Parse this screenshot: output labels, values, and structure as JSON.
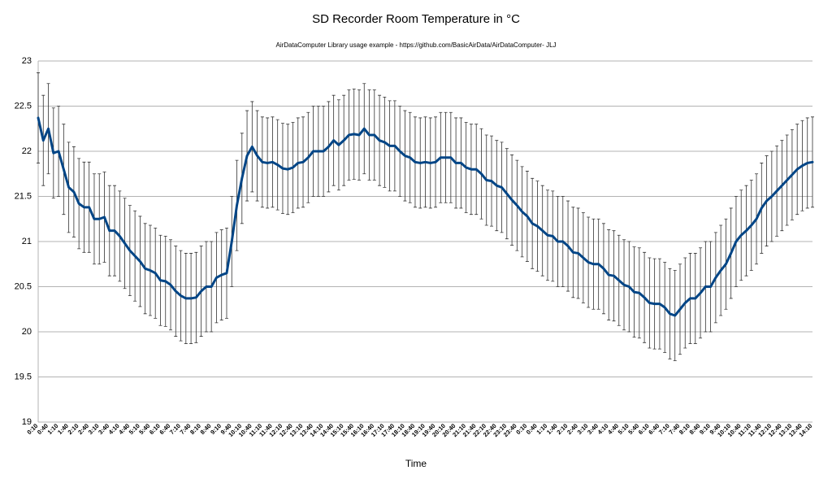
{
  "chart_data": {
    "type": "line",
    "title": "SD Recorder Room Temperature in °C",
    "subtitle": "AirDataComputer Library usage example - https://github.com/BasicAirData/AirDataComputer-  JLJ",
    "x_label": "Time",
    "categories": [
      "0:10",
      null,
      "0:40",
      null,
      "1:10",
      null,
      "1:40",
      null,
      "2:10",
      null,
      "2:40",
      null,
      "3:10",
      null,
      "3:40",
      null,
      "4:10",
      null,
      "4:40",
      null,
      "5:10",
      null,
      "5:40",
      null,
      "6:10",
      null,
      "6:40",
      null,
      "7:10",
      null,
      "7:40",
      null,
      "8:10",
      null,
      "8:40",
      null,
      "9:10",
      null,
      "9:40",
      null,
      "10:10",
      null,
      "10:40",
      null,
      "11:10",
      null,
      "11:40",
      null,
      "12:10",
      null,
      "12:40",
      null,
      "13:10",
      null,
      "13:40",
      null,
      "14:10",
      null,
      "14:40",
      null,
      "15:10",
      null,
      "15:40",
      null,
      "16:10",
      null,
      "16:40",
      null,
      "17:10",
      null,
      "17:40",
      null,
      "18:10",
      null,
      "18:40",
      null,
      "19:10",
      null,
      "19:40",
      null,
      "20:10",
      null,
      "20:40",
      null,
      "21:10",
      null,
      "21:40",
      null,
      "22:10",
      null,
      "22:40",
      null,
      "23:10",
      null,
      "23:40",
      null,
      "0:10",
      null,
      "0:40",
      null,
      "1:10",
      null,
      "1:40",
      null,
      "2:10",
      null,
      "2:40",
      null,
      "3:10",
      null,
      "3:40",
      null,
      "4:10",
      null,
      "4:40",
      null,
      "5:10",
      null,
      "5:40",
      null,
      "6:10",
      null,
      "6:40",
      null,
      "7:10",
      null,
      "7:40",
      null,
      "8:10",
      null,
      "8:40",
      null,
      "9:10",
      null,
      "9:40",
      null,
      "10:10",
      null,
      "10:40",
      null,
      "11:10",
      null,
      "11:40",
      null,
      "12:10",
      null,
      "12:40",
      null,
      "13:10",
      null,
      "13:40",
      null,
      "14:10"
    ],
    "series": [
      {
        "color": "#004586",
        "error": 0.5,
        "error_color": "#333333",
        "values": [
          22.37,
          22.12,
          22.25,
          21.98,
          22.0,
          21.8,
          21.6,
          21.55,
          21.42,
          21.38,
          21.38,
          21.25,
          21.25,
          21.27,
          21.12,
          21.12,
          21.06,
          20.98,
          20.9,
          20.84,
          20.78,
          20.7,
          20.68,
          20.65,
          20.57,
          20.56,
          20.52,
          20.45,
          20.4,
          20.37,
          20.37,
          20.38,
          20.45,
          20.5,
          20.5,
          20.6,
          20.63,
          20.65,
          21.0,
          21.4,
          21.7,
          21.95,
          22.05,
          21.95,
          21.88,
          21.87,
          21.88,
          21.85,
          21.81,
          21.8,
          21.82,
          21.87,
          21.88,
          21.93,
          22.0,
          22.0,
          22.0,
          22.05,
          22.12,
          22.07,
          22.12,
          22.18,
          22.19,
          22.18,
          22.25,
          22.18,
          22.18,
          22.12,
          22.1,
          22.06,
          22.06,
          22.0,
          21.95,
          21.93,
          21.88,
          21.87,
          21.88,
          21.87,
          21.88,
          21.93,
          21.93,
          21.93,
          21.87,
          21.87,
          21.82,
          21.8,
          21.8,
          21.75,
          21.68,
          21.67,
          21.62,
          21.6,
          21.53,
          21.46,
          21.4,
          21.33,
          21.28,
          21.2,
          21.17,
          21.12,
          21.07,
          21.06,
          21.0,
          21.0,
          20.95,
          20.88,
          20.87,
          20.82,
          20.77,
          20.75,
          20.75,
          20.7,
          20.63,
          20.62,
          20.57,
          20.52,
          20.5,
          20.44,
          20.43,
          20.38,
          20.32,
          20.31,
          20.31,
          20.27,
          20.2,
          20.18,
          20.25,
          20.32,
          20.37,
          20.37,
          20.43,
          20.5,
          20.5,
          20.6,
          20.68,
          20.75,
          20.87,
          21.0,
          21.07,
          21.12,
          21.18,
          21.25,
          21.37,
          21.45,
          21.5,
          21.56,
          21.62,
          21.68,
          21.74,
          21.8,
          21.84,
          21.87,
          21.88
        ]
      }
    ],
    "ylim": [
      19,
      23
    ],
    "yticks": [
      19,
      19.5,
      20,
      20.5,
      21,
      21.5,
      22,
      22.5,
      23
    ],
    "grid": true
  }
}
